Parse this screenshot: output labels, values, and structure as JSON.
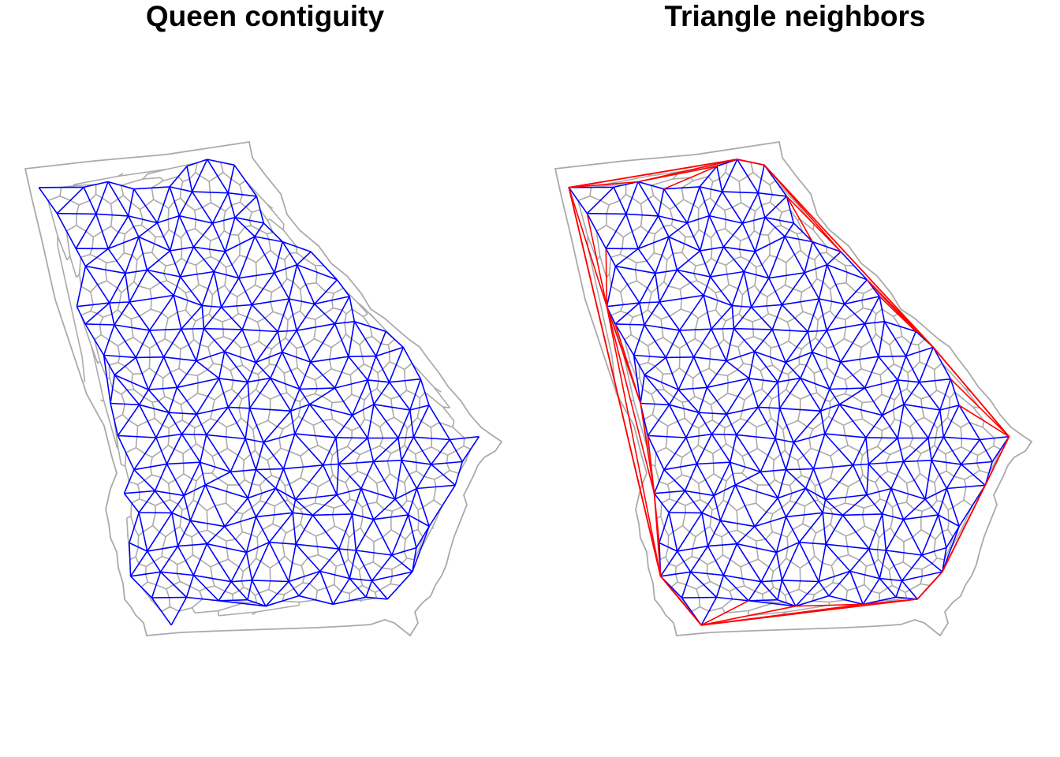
{
  "panels": [
    {
      "title": "Queen contiguity",
      "legend": "",
      "edge_color": "#0000ff",
      "extra_edge_color": ""
    },
    {
      "title": "Triangle neighbors",
      "legend": "",
      "edge_color": "#0000ff",
      "extra_edge_color": "#ff0000"
    }
  ],
  "colors": {
    "county_borders": "#aaaaaa",
    "queen_links": "#0000ff",
    "triangle_only_links": "#ff0000",
    "background": "#ffffff"
  }
}
